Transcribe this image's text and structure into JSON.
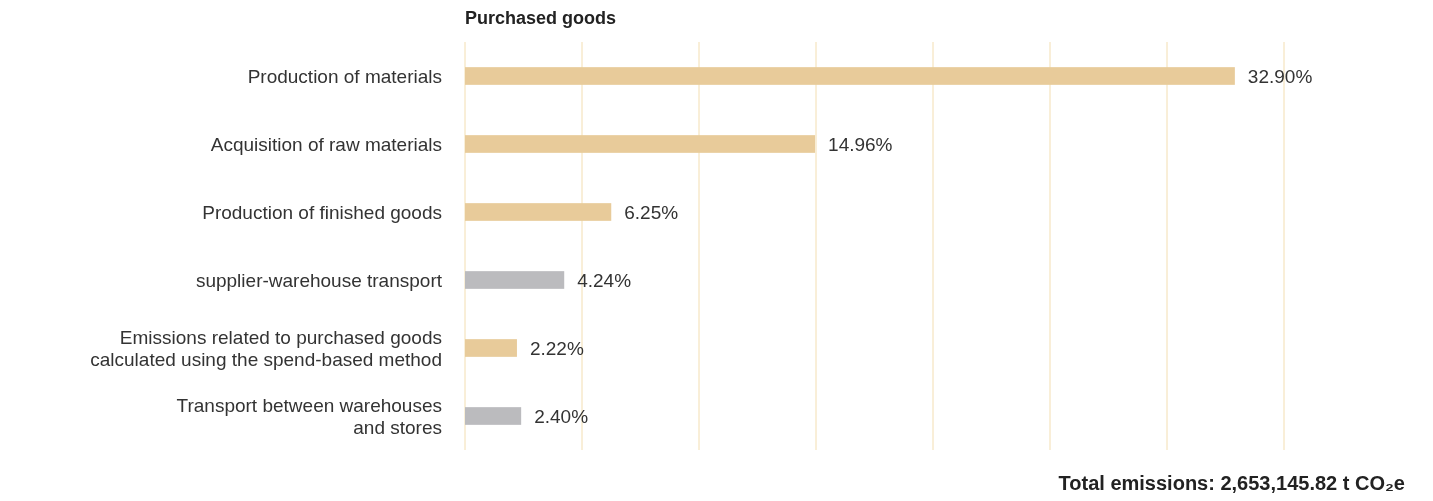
{
  "chart_data": {
    "type": "bar",
    "orientation": "horizontal",
    "title": "Purchased goods",
    "categories": [
      "Production of materials",
      "Acquisition of raw materials",
      "Production of finished goods",
      "supplier-warehouse transport",
      "Emissions related to purchased goods\ncalculated using the spend-based method",
      "Transport between warehouses\nand stores"
    ],
    "values": [
      32.9,
      14.96,
      6.25,
      4.24,
      2.22,
      2.4
    ],
    "colors": [
      "#e8cb9a",
      "#e8cb9a",
      "#e8cb9a",
      "#bbbbbe",
      "#e8cb9a",
      "#bbbbbe"
    ],
    "value_labels": [
      "32.90%",
      "14.96%",
      "6.25%",
      "4.24%",
      "2.22%",
      "2.40%"
    ],
    "xlim": [
      0,
      35
    ],
    "xticks": [
      {
        "value": 0,
        "label": null
      },
      {
        "value": 5,
        "label": null
      },
      {
        "value": 10,
        "label": null
      },
      {
        "value": 15,
        "label": null
      },
      {
        "value": 20,
        "label": null
      },
      {
        "value": 25,
        "label": null
      },
      {
        "value": 30,
        "label": null
      },
      {
        "value": 35,
        "label": null
      }
    ],
    "grid": "x",
    "tick_labels": "y",
    "annotations": [
      "Total emissions: 2,653,145.82 t CO₂e"
    ]
  }
}
